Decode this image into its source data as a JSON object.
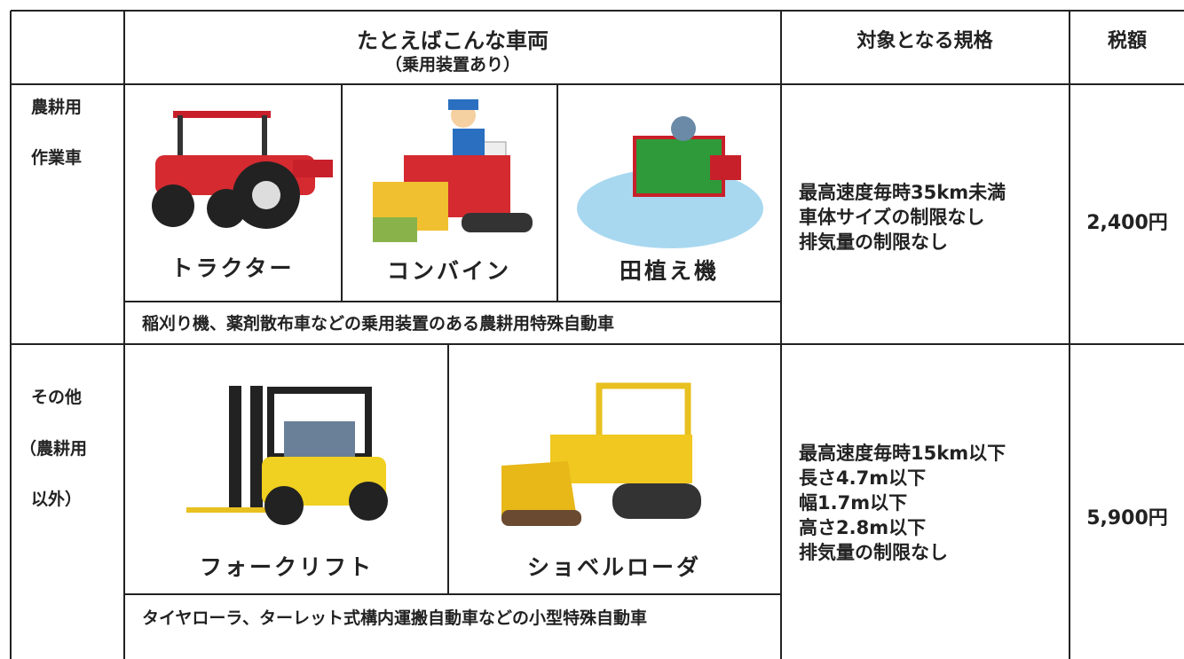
{
  "header": {
    "vehicles_title": "たとえばこんな車両",
    "vehicles_subtitle": "（乗用装置あり）",
    "spec": "対象となる規格",
    "tax": "税額"
  },
  "rows": [
    {
      "category_lines": [
        "農耕用",
        "作業車"
      ],
      "vehicles": [
        "トラクター",
        "コンバイン",
        "田植え機"
      ],
      "note": "稲刈り機、薬剤散布車などの乗用装置のある農耕用特殊自動車",
      "spec_lines": [
        "最高速度毎時35km未満",
        "車体サイズの制限なし",
        "排気量の制限なし"
      ],
      "tax": "2,400円"
    },
    {
      "category_lines": [
        "その他",
        "（農耕用",
        "以外）"
      ],
      "vehicles": [
        "フォークリフト",
        "ショベルローダ"
      ],
      "note": "タイヤローラ、ターレット式構内運搬自動車などの小型特殊自動車",
      "spec_lines": [
        "最高速度毎時15km以下",
        "長さ4.7m以下",
        "幅1.7m以下",
        "高さ2.8m以下",
        "排気量の制限なし"
      ],
      "tax": "5,900円"
    }
  ]
}
